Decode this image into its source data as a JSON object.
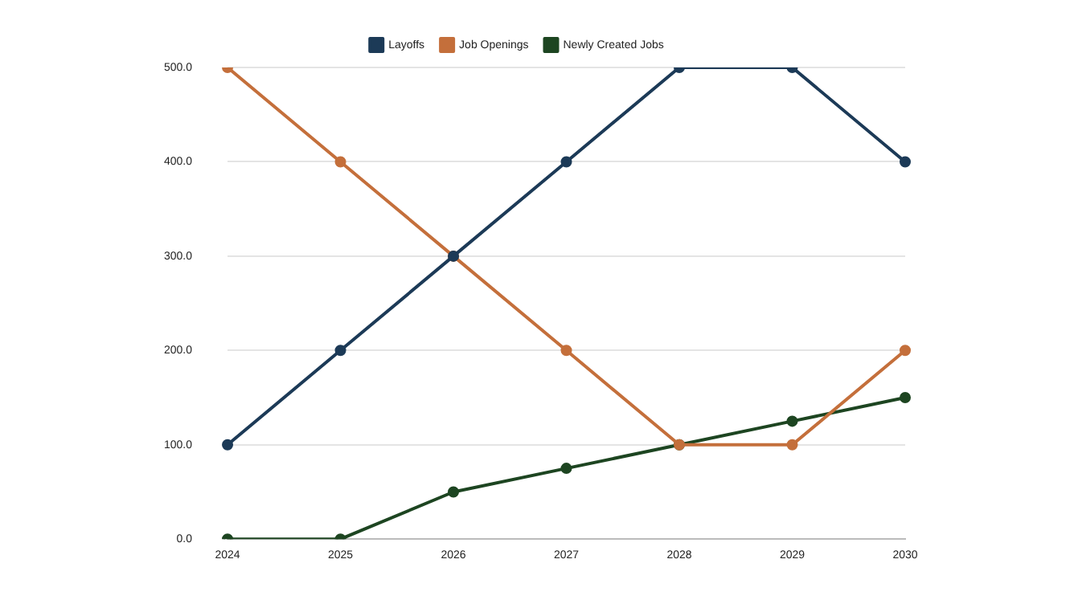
{
  "chart_data": {
    "type": "line",
    "categories": [
      "2024",
      "2025",
      "2026",
      "2027",
      "2028",
      "2029",
      "2030"
    ],
    "series": [
      {
        "name": "Layoffs",
        "color": "#1c3a57",
        "values": [
          100,
          200,
          300,
          400,
          500,
          500,
          400
        ]
      },
      {
        "name": "Job Openings",
        "color": "#c46f3b",
        "values": [
          500,
          400,
          300,
          200,
          100,
          100,
          200
        ]
      },
      {
        "name": "Newly Created Jobs",
        "color": "#1d4521",
        "values": [
          0,
          0,
          50,
          75,
          100,
          125,
          150
        ]
      }
    ],
    "ylim": [
      0,
      500
    ],
    "yticks": [
      {
        "value": 0,
        "label": "0.0"
      },
      {
        "value": 100,
        "label": "100.0"
      },
      {
        "value": 200,
        "label": "200.0"
      },
      {
        "value": 300,
        "label": "300.0"
      },
      {
        "value": 400,
        "label": "400.0"
      },
      {
        "value": 500,
        "label": "500.0"
      }
    ],
    "grid": "y",
    "legend": "top",
    "marker": "circle",
    "line_style": "solid"
  }
}
